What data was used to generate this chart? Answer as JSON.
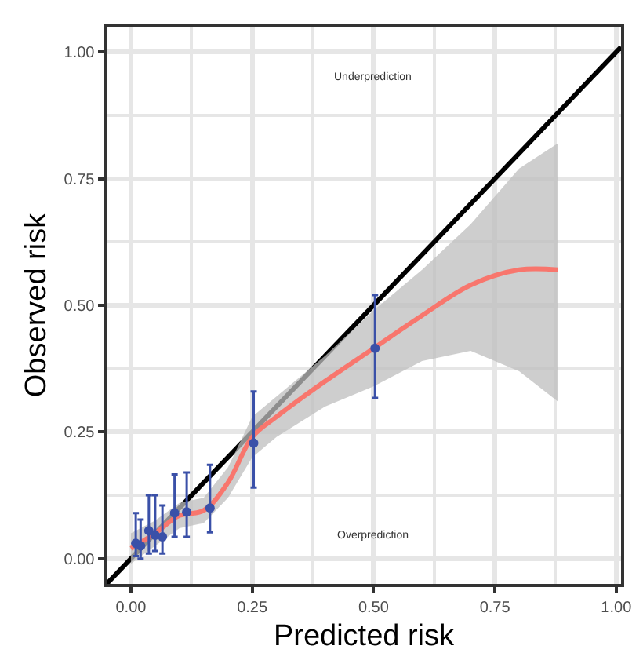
{
  "chart_data": {
    "type": "scatter",
    "xlabel": "Predicted risk",
    "ylabel": "Observed risk",
    "xlim": [
      -0.05,
      1.01
    ],
    "ylim": [
      -0.05,
      1.05
    ],
    "xticks": [
      {
        "value": 0,
        "label": "0.00"
      },
      {
        "value": 0.125,
        "label": null
      },
      {
        "value": 0.25,
        "label": "0.25"
      },
      {
        "value": 0.375,
        "label": null
      },
      {
        "value": 0.5,
        "label": "0.50"
      },
      {
        "value": 0.625,
        "label": null
      },
      {
        "value": 0.75,
        "label": "0.75"
      },
      {
        "value": 0.875,
        "label": null
      },
      {
        "value": 1,
        "label": "1.00"
      }
    ],
    "yticks": [
      {
        "value": 0,
        "label": "0.00"
      },
      {
        "value": 0.125,
        "label": null
      },
      {
        "value": 0.25,
        "label": "0.25"
      },
      {
        "value": 0.375,
        "label": null
      },
      {
        "value": 0.5,
        "label": "0.50"
      },
      {
        "value": 0.625,
        "label": null
      },
      {
        "value": 0.75,
        "label": "0.75"
      },
      {
        "value": 0.875,
        "label": null
      },
      {
        "value": 1,
        "label": "1.00"
      }
    ],
    "grid": true,
    "annotations": [
      "Underprediction",
      "Overprediction"
    ],
    "series": [
      {
        "type": "line",
        "color": "#000000",
        "marker": "none",
        "x": [
          -0.05,
          1.01
        ],
        "values": [
          -0.05,
          1.01
        ]
      },
      {
        "type": "line",
        "color": "#f8766d",
        "marker": "none",
        "x": [
          0.0,
          0.05,
          0.1,
          0.15,
          0.2,
          0.25,
          0.3,
          0.4,
          0.5,
          0.6,
          0.7,
          0.8,
          0.88
        ],
        "values": [
          0.02,
          0.05,
          0.085,
          0.095,
          0.15,
          0.24,
          0.28,
          0.35,
          0.415,
          0.48,
          0.54,
          0.57,
          0.57
        ],
        "lower": [
          -0.01,
          0.025,
          0.06,
          0.07,
          0.12,
          0.2,
          0.24,
          0.3,
          0.34,
          0.39,
          0.41,
          0.37,
          0.31
        ],
        "upper": [
          0.05,
          0.075,
          0.11,
          0.12,
          0.18,
          0.28,
          0.32,
          0.4,
          0.49,
          0.57,
          0.66,
          0.77,
          0.82
        ]
      },
      {
        "color": "#3a50a8",
        "marker": "circle",
        "x": [
          0.01,
          0.02,
          0.037,
          0.05,
          0.065,
          0.09,
          0.115,
          0.163,
          0.253,
          0.503
        ],
        "values": [
          0.03,
          0.025,
          0.055,
          0.046,
          0.043,
          0.09,
          0.092,
          0.1,
          0.228,
          0.415
        ],
        "errors": [
          [
            0.005,
            0.09
          ],
          [
            0.0,
            0.077
          ],
          [
            0.01,
            0.125
          ],
          [
            0.015,
            0.125
          ],
          [
            0.01,
            0.105
          ],
          [
            0.043,
            0.166
          ],
          [
            0.043,
            0.17
          ],
          [
            0.052,
            0.185
          ],
          [
            0.14,
            0.33
          ],
          [
            0.317,
            0.52
          ]
        ]
      }
    ]
  }
}
